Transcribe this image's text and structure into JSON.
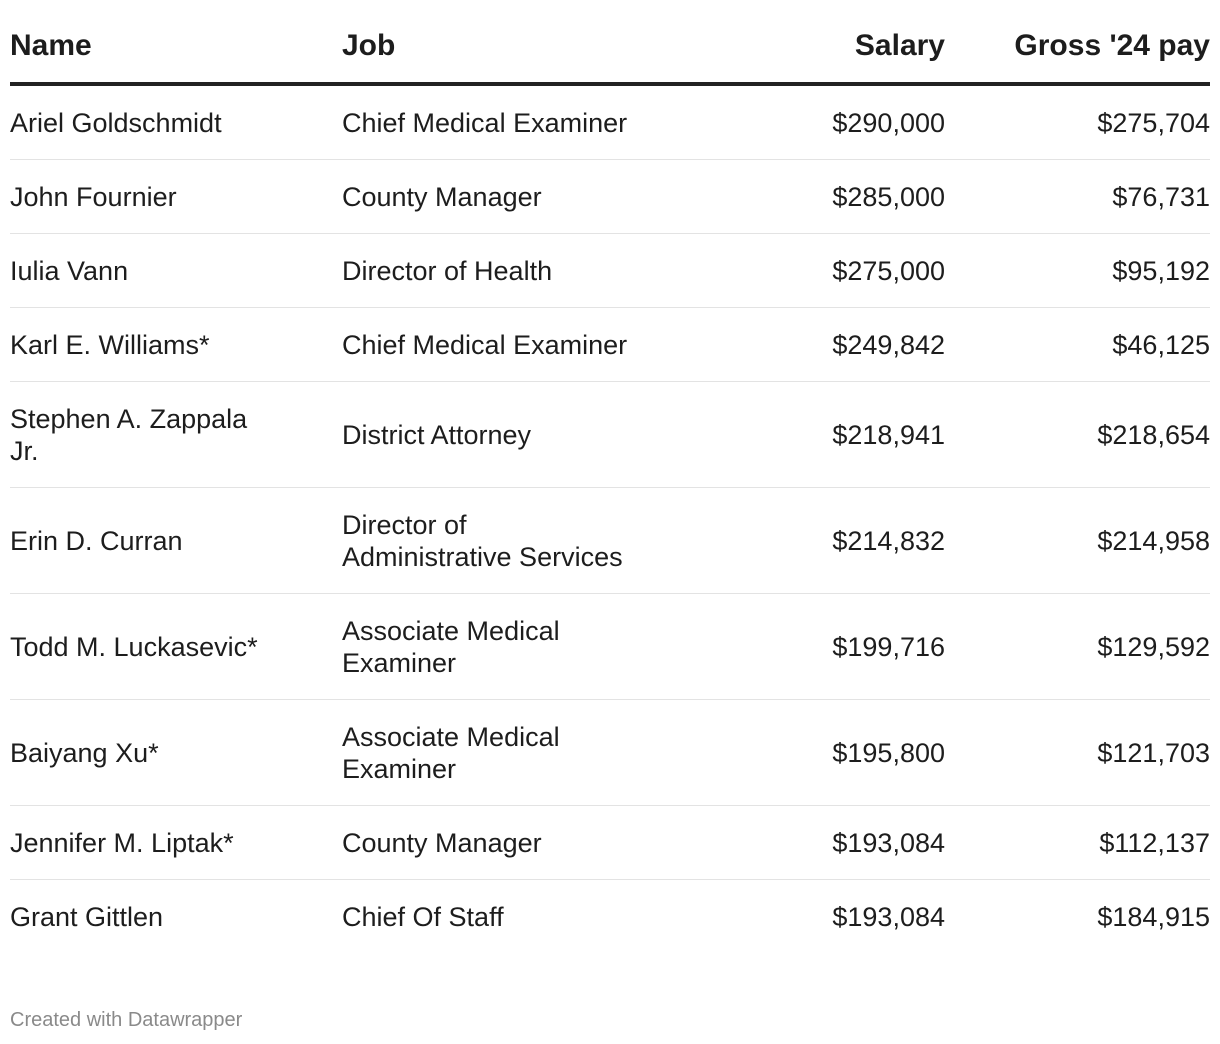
{
  "chart_data": {
    "type": "table",
    "columns": [
      "Name",
      "Job",
      "Salary",
      "Gross '24 pay"
    ],
    "rows": [
      {
        "name": "Ariel Goldschmidt",
        "job": "Chief Medical Examiner",
        "salary": "$290,000",
        "gross": "$275,704"
      },
      {
        "name": "John Fournier",
        "job": "County Manager",
        "salary": "$285,000",
        "gross": "$76,731"
      },
      {
        "name": "Iulia Vann",
        "job": "Director of Health",
        "salary": "$275,000",
        "gross": "$95,192"
      },
      {
        "name": "Karl E. Williams*",
        "job": "Chief Medical Examiner",
        "salary": "$249,842",
        "gross": "$46,125"
      },
      {
        "name": "Stephen A. Zappala Jr.",
        "job": "District Attorney",
        "salary": "$218,941",
        "gross": "$218,654"
      },
      {
        "name": "Erin D. Curran",
        "job": "Director of Administrative Services",
        "salary": "$214,832",
        "gross": "$214,958"
      },
      {
        "name": "Todd M. Luckasevic*",
        "job": "Associate Medical Examiner",
        "salary": "$199,716",
        "gross": "$129,592"
      },
      {
        "name": "Baiyang Xu*",
        "job": "Associate Medical Examiner",
        "salary": "$195,800",
        "gross": "$121,703"
      },
      {
        "name": "Jennifer M. Liptak*",
        "job": "County Manager",
        "salary": "$193,084",
        "gross": "$112,137"
      },
      {
        "name": "Grant Gittlen",
        "job": "Chief Of Staff",
        "salary": "$193,084",
        "gross": "$184,915"
      }
    ]
  },
  "footer": {
    "credit": "Created with Datawrapper"
  }
}
